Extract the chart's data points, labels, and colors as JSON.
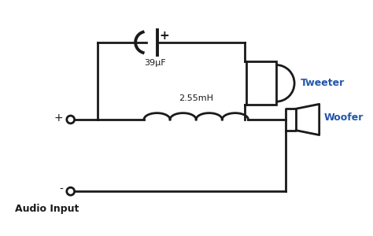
{
  "bg_color": "#ffffff",
  "line_color": "#1a1a1a",
  "line_width": 2.0,
  "text_color": "#1a1a1a",
  "blue_text_color": "#2255aa",
  "capacitor_label": "39μF",
  "inductor_label": "2.55mH",
  "tweeter_label": "Tweeter",
  "woofer_label": "Woofer",
  "audio_input_label": "Audio Input",
  "plus_label": "+",
  "minus_label": "-"
}
